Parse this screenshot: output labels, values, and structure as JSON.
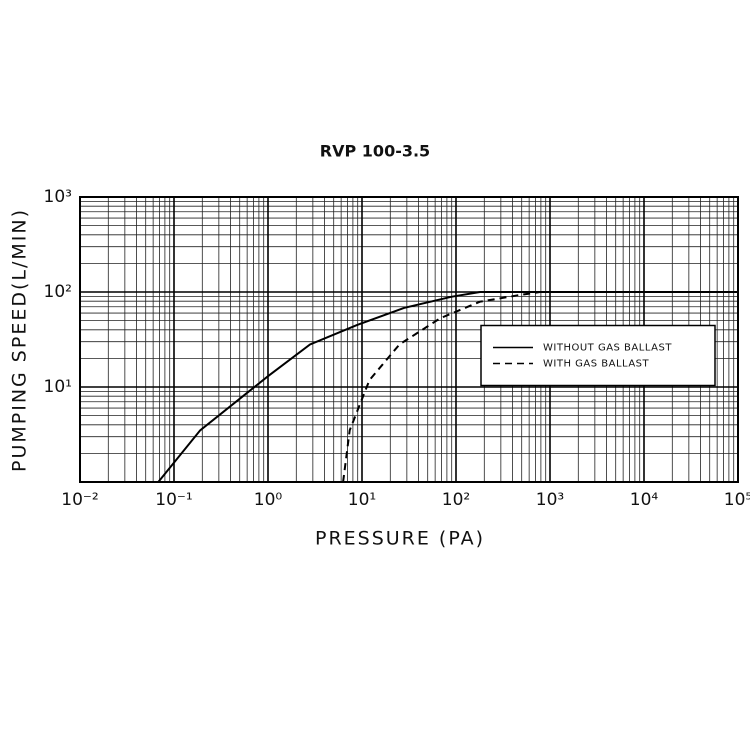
{
  "chart_data": {
    "type": "line",
    "title": "RVP 100-3.5",
    "xlabel": "PRESSURE (PA)",
    "ylabel": "PUMPING SPEED(L/MIN)",
    "xscale": "log",
    "yscale": "log",
    "xlim": [
      0.01,
      100000
    ],
    "ylim": [
      1,
      1000
    ],
    "xticks": [
      {
        "value": 0.01,
        "label": "10⁻²"
      },
      {
        "value": 0.1,
        "label": "10⁻¹"
      },
      {
        "value": 1,
        "label": "10⁰"
      },
      {
        "value": 10,
        "label": "10¹"
      },
      {
        "value": 100,
        "label": "10²"
      },
      {
        "value": 1000,
        "label": "10³"
      },
      {
        "value": 10000,
        "label": "10⁴"
      },
      {
        "value": 100000,
        "label": "10⁵"
      }
    ],
    "yticks": [
      {
        "value": 10,
        "label": "10¹"
      },
      {
        "value": 100,
        "label": "10²"
      },
      {
        "value": 1000,
        "label": "10³"
      }
    ],
    "grid": true,
    "minor_grid": true,
    "legend": "center right",
    "series": [
      {
        "name": "WITHOUT GAS BALLAST",
        "color": "#000000",
        "dashed": false,
        "x": [
          0.068,
          0.19,
          1,
          2.8,
          8.9,
          28,
          89,
          180,
          100000
        ],
        "values": [
          1,
          3.5,
          13,
          28,
          45,
          68,
          89,
          100,
          100
        ]
      },
      {
        "name": "WITH GAS BALLAST",
        "color": "#000000",
        "dashed": true,
        "x": [
          6.3,
          7.4,
          12,
          25,
          68,
          180,
          480,
          780,
          100000
        ],
        "values": [
          1,
          3.5,
          11.8,
          28,
          53,
          79,
          93,
          100,
          100
        ]
      }
    ]
  }
}
